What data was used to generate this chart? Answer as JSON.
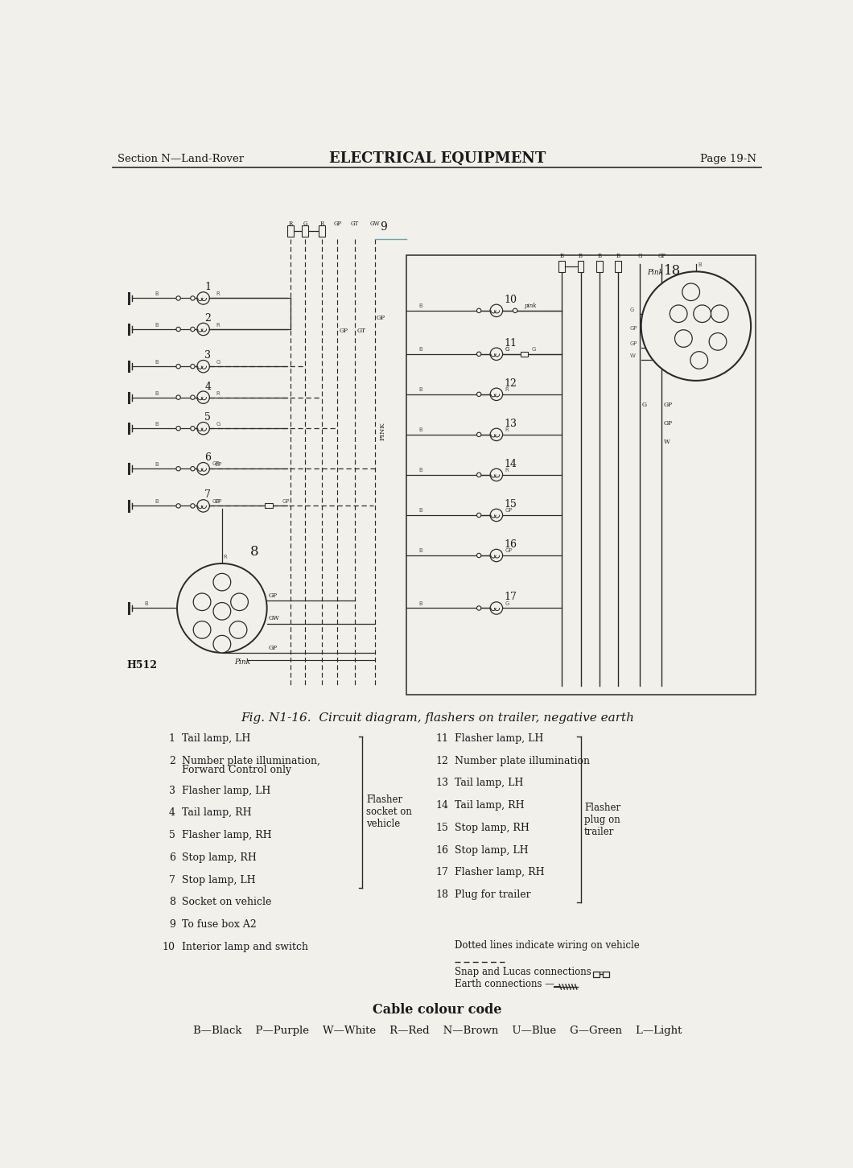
{
  "page_title_left": "Section N—Land-Rover",
  "page_title_center": "ELECTRICAL EQUIPMENT",
  "page_title_right": "Page 19-N",
  "fig_caption": "Fig. N1-16.  Circuit diagram, flashers on trailer, negative earth",
  "legend_left": [
    [
      "1",
      "Tail lamp, LH"
    ],
    [
      "2",
      "Number plate illumination,\n    Forward Control only"
    ],
    [
      "3",
      "Flasher lamp, LH"
    ],
    [
      "4",
      "Tail lamp, RH"
    ],
    [
      "5",
      "Flasher lamp, RH"
    ],
    [
      "6",
      "Stop lamp, RH"
    ],
    [
      "7",
      "Stop lamp, LH"
    ],
    [
      "8",
      "Socket on vehicle"
    ],
    [
      "9",
      "To fuse box A2"
    ],
    [
      "10",
      "Interior lamp and switch"
    ]
  ],
  "legend_right": [
    [
      "11",
      "Flasher lamp, LH"
    ],
    [
      "12",
      "Number plate illumination"
    ],
    [
      "13",
      "Tail lamp, LH"
    ],
    [
      "14",
      "Tail lamp, RH"
    ],
    [
      "15",
      "Stop lamp, RH"
    ],
    [
      "16",
      "Stop lamp, LH"
    ],
    [
      "17",
      "Flasher lamp, RH"
    ],
    [
      "18",
      "Plug for trailer"
    ]
  ],
  "bracket_left_label": "Flasher\nsocket on\nvehicle",
  "bracket_right_label": "Flasher\nplug on\ntrailer",
  "dotted_note": "Dotted lines indicate wiring on vehicle",
  "cable_title": "Cable colour code",
  "cable_codes": "B—Black    P—Purple    W—White    R—Red    N—Brown    U—Blue    G—Green    L—Light",
  "bg_color": "#f2f0eb",
  "line_color": "#2a2a2a",
  "text_color": "#1a1a1a"
}
